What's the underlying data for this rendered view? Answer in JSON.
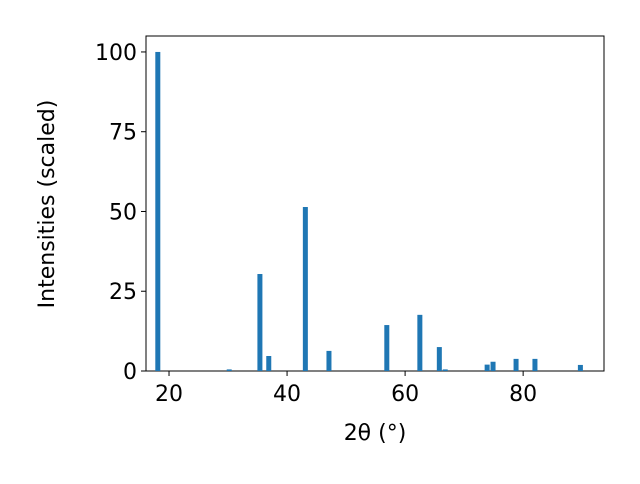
{
  "chart_data": {
    "type": "bar",
    "x": [
      18.1,
      30.2,
      35.4,
      36.9,
      43.1,
      47.1,
      56.9,
      62.5,
      65.8,
      66.8,
      73.9,
      74.9,
      78.8,
      82.0,
      89.7
    ],
    "values": [
      100,
      0.5,
      30.4,
      4.7,
      51.4,
      6.3,
      14.4,
      17.6,
      7.5,
      0.5,
      2.0,
      2.9,
      3.8,
      3.8,
      1.9
    ],
    "color": "#1f77b4",
    "xlabel": "2θ (°)",
    "ylabel": "Intensities (scaled)",
    "xlim": [
      16.1,
      93.7
    ],
    "xticks": [
      20,
      40,
      60,
      80
    ],
    "ylim": [
      0,
      105
    ],
    "yticks": [
      0,
      25,
      50,
      75,
      100
    ]
  }
}
